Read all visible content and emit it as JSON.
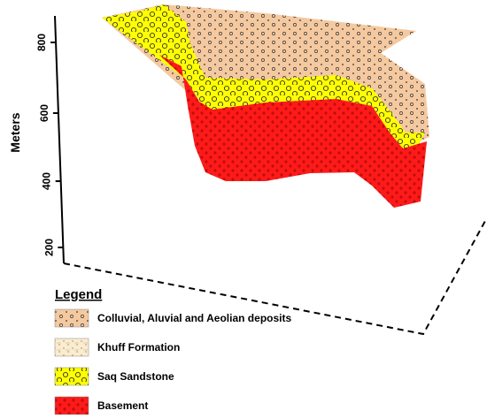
{
  "axis": {
    "label": "Meters",
    "ticks": [
      "200",
      "400",
      "600",
      "800"
    ]
  },
  "legend": {
    "title": "Legend",
    "items": [
      {
        "label": "Colluvial, Aluvial and Aeolian deposits",
        "color": "#f5c9a0"
      },
      {
        "label": "Khuff Formation",
        "color": "#fbeccd"
      },
      {
        "label": "Saq Sandstone",
        "color": "#ffff00"
      },
      {
        "label": "Basement",
        "color": "#ff1a1a"
      }
    ]
  }
}
